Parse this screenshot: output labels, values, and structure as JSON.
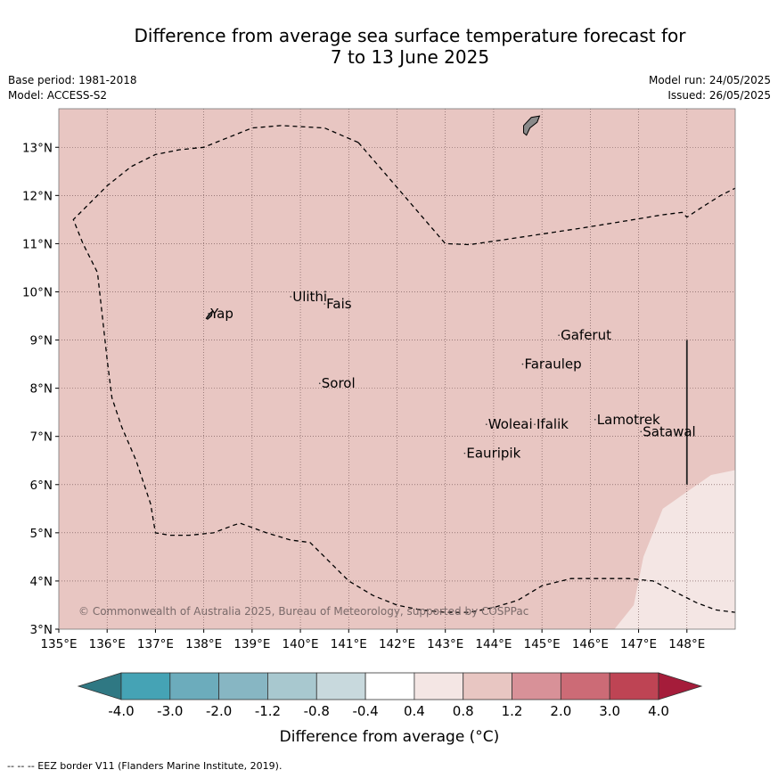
{
  "title_line1": "Difference from average sea surface temperature forecast for",
  "title_line2": "7 to 13 June 2025",
  "meta": {
    "base_period": "Base period: 1981-2018",
    "model": "Model: ACCESS-S2",
    "model_run": "Model run: 24/05/2025",
    "issued": "Issued: 26/05/2025"
  },
  "map": {
    "lon_range": [
      135,
      149
    ],
    "lat_range": [
      3,
      13.8
    ],
    "lon_ticks": [
      "135°E",
      "136°E",
      "137°E",
      "138°E",
      "139°E",
      "140°E",
      "141°E",
      "142°E",
      "143°E",
      "144°E",
      "145°E",
      "146°E",
      "147°E",
      "148°E"
    ],
    "lat_ticks": [
      "3°N",
      "4°N",
      "5°N",
      "6°N",
      "7°N",
      "8°N",
      "9°N",
      "10°N",
      "11°N",
      "12°N",
      "13°N"
    ],
    "background_anomaly_class": "0.8 to 1.2",
    "background_color": "#e8c6c2",
    "lower_anomaly_class": "0.4 to 0.8",
    "lower_color": "#f4e6e4",
    "places": [
      {
        "name": "Ulithi",
        "lon": 139.8,
        "lat": 9.9
      },
      {
        "name": "Fais",
        "lon": 140.5,
        "lat": 9.75
      },
      {
        "name": "Yap",
        "lon": 138.1,
        "lat": 9.55
      },
      {
        "name": "Gaferut",
        "lon": 145.35,
        "lat": 9.1
      },
      {
        "name": "Faraulep",
        "lon": 144.6,
        "lat": 8.5
      },
      {
        "name": "Sorol",
        "lon": 140.4,
        "lat": 8.1
      },
      {
        "name": "Lamotrek",
        "lon": 146.1,
        "lat": 7.35
      },
      {
        "name": "Woleai",
        "lon": 143.85,
        "lat": 7.25
      },
      {
        "name": "Ifalik",
        "lon": 144.85,
        "lat": 7.25
      },
      {
        "name": "Satawal",
        "lon": 147.05,
        "lat": 7.1
      },
      {
        "name": "Eauripik",
        "lon": 143.4,
        "lat": 6.65
      }
    ],
    "copyright": "© Commonwealth of Australia 2025, Bureau of Meteorology, supported by COSPPac"
  },
  "colorbar": {
    "label": "Difference from average (°C)",
    "ticks": [
      "-4.0",
      "-3.0",
      "-2.0",
      "-1.2",
      "-0.8",
      "-0.4",
      "0.4",
      "0.8",
      "1.2",
      "2.0",
      "3.0",
      "4.0"
    ],
    "colors": [
      "#2f7883",
      "#45a3b5",
      "#6cacbc",
      "#87b6c3",
      "#a8c8cf",
      "#c8d9dd",
      "#ffffff",
      "#f4e6e4",
      "#e8c6c2",
      "#d89198",
      "#cc6b76",
      "#be4454",
      "#a51c3a"
    ]
  },
  "footer": "--  --  -- EEZ border V11 (Flanders Marine Institute, 2019)."
}
